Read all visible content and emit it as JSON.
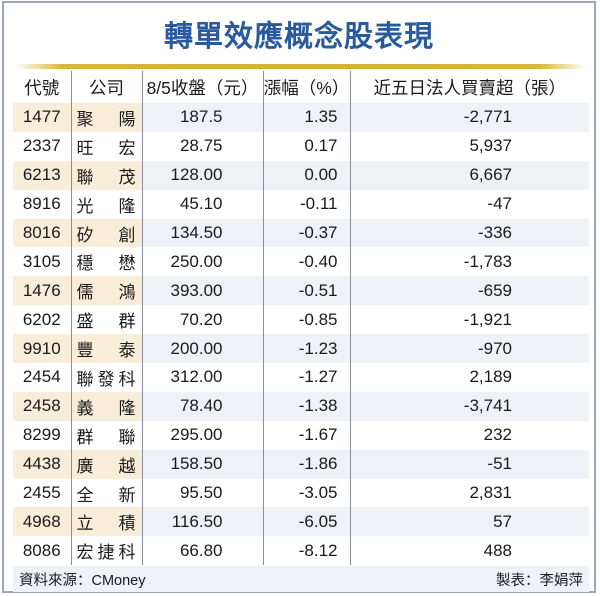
{
  "title": "轉單效應概念股表現",
  "table": {
    "headers": [
      "代號",
      "公司",
      "8/5收盤（元）",
      "漲幅（%）",
      "近五日法人買賣超（張）"
    ],
    "rows": [
      {
        "code": "1477",
        "name": [
          "聚",
          "陽"
        ],
        "close": "187.5",
        "change": "1.35",
        "net": "-2,771"
      },
      {
        "code": "2337",
        "name": [
          "旺",
          "宏"
        ],
        "close": "28.75",
        "change": "0.17",
        "net": "5,937"
      },
      {
        "code": "6213",
        "name": [
          "聯",
          "茂"
        ],
        "close": "128.00",
        "change": "0.00",
        "net": "6,667"
      },
      {
        "code": "8916",
        "name": [
          "光",
          "隆"
        ],
        "close": "45.10",
        "change": "-0.11",
        "net": "-47"
      },
      {
        "code": "8016",
        "name": [
          "矽",
          "創"
        ],
        "close": "134.50",
        "change": "-0.37",
        "net": "-336"
      },
      {
        "code": "3105",
        "name": [
          "穩",
          "懋"
        ],
        "close": "250.00",
        "change": "-0.40",
        "net": "-1,783"
      },
      {
        "code": "1476",
        "name": [
          "儒",
          "鴻"
        ],
        "close": "393.00",
        "change": "-0.51",
        "net": "-659"
      },
      {
        "code": "6202",
        "name": [
          "盛",
          "群"
        ],
        "close": "70.20",
        "change": "-0.85",
        "net": "-1,921"
      },
      {
        "code": "9910",
        "name": [
          "豐",
          "泰"
        ],
        "close": "200.00",
        "change": "-1.23",
        "net": "-970"
      },
      {
        "code": "2454",
        "name": [
          "聯",
          "發",
          "科"
        ],
        "close": "312.00",
        "change": "-1.27",
        "net": "2,189"
      },
      {
        "code": "2458",
        "name": [
          "義",
          "隆"
        ],
        "close": "78.40",
        "change": "-1.38",
        "net": "-3,741"
      },
      {
        "code": "8299",
        "name": [
          "群",
          "聯"
        ],
        "close": "295.00",
        "change": "-1.67",
        "net": "232"
      },
      {
        "code": "4438",
        "name": [
          "廣",
          "越"
        ],
        "close": "158.50",
        "change": "-1.86",
        "net": "-51"
      },
      {
        "code": "2455",
        "name": [
          "全",
          "新"
        ],
        "close": "95.50",
        "change": "-3.05",
        "net": "2,831"
      },
      {
        "code": "4968",
        "name": [
          "立",
          "積"
        ],
        "close": "116.50",
        "change": "-6.05",
        "net": "57"
      },
      {
        "code": "8086",
        "name": [
          "宏",
          "捷",
          "科"
        ],
        "close": "66.80",
        "change": "-8.12",
        "net": "488"
      }
    ]
  },
  "footer": {
    "source": "資料來源：CMoney",
    "author": "製表：李娟萍"
  },
  "colors": {
    "title": "#2a5a9e",
    "gold_rule": "#d4b230",
    "left_highlight": "#f7edd9",
    "row_stripe": "#eef1f5",
    "footer_bg": "#eef1f8"
  }
}
